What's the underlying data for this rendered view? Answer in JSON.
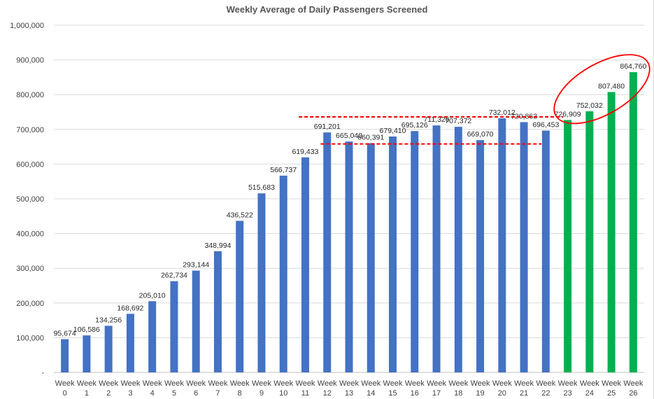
{
  "chart_data": {
    "type": "bar",
    "title": "Weekly Average of Daily Passengers Screened",
    "xlabel": "",
    "ylabel": "",
    "ylim": [
      0,
      1000000
    ],
    "yticks": [
      0,
      100000,
      200000,
      300000,
      400000,
      500000,
      600000,
      700000,
      800000,
      900000,
      1000000
    ],
    "ytick_labels": [
      "-",
      "100,000",
      "200,000",
      "300,000",
      "400,000",
      "500,000",
      "600,000",
      "700,000",
      "800,000",
      "900,000",
      "1,000,000"
    ],
    "grid": true,
    "categories": [
      "Week 0",
      "Week 1",
      "Week 2",
      "Week 3",
      "Week 4",
      "Week 5",
      "Week 6",
      "Week 7",
      "Week 8",
      "Week 9",
      "Week 10",
      "Week 11",
      "Week 12",
      "Week 13",
      "Week 14",
      "Week 15",
      "Week 16",
      "Week 17",
      "Week 18",
      "Week 19",
      "Week 20",
      "Week 21",
      "Week 22",
      "Week 23",
      "Week 24",
      "Week 25",
      "Week 26"
    ],
    "values": [
      95674,
      106586,
      134256,
      168692,
      205010,
      262734,
      293144,
      348994,
      436522,
      515683,
      566737,
      619433,
      691201,
      665040,
      660391,
      679410,
      695126,
      711326,
      707372,
      669070,
      732012,
      720863,
      696453,
      726909,
      752032,
      807480,
      864760
    ],
    "data_labels": [
      "95,674",
      "106,586",
      "134,256",
      "168,692",
      "205,010",
      "262,734",
      "293,144",
      "348,994",
      "436,522",
      "515,683",
      "566,737",
      "619,433",
      "691,201",
      "665,040",
      "660,391",
      "679,410",
      "695,126",
      "711,326",
      "707,372",
      "669,070",
      "732,012",
      "720,863",
      "696,453",
      "726,909",
      "752,032",
      "807,480",
      "864,760"
    ],
    "bar_colors": [
      "#4472c4",
      "#4472c4",
      "#4472c4",
      "#4472c4",
      "#4472c4",
      "#4472c4",
      "#4472c4",
      "#4472c4",
      "#4472c4",
      "#4472c4",
      "#4472c4",
      "#4472c4",
      "#4472c4",
      "#4472c4",
      "#4472c4",
      "#4472c4",
      "#4472c4",
      "#4472c4",
      "#4472c4",
      "#4472c4",
      "#4472c4",
      "#4472c4",
      "#4472c4",
      "#00b050",
      "#00b050",
      "#00b050",
      "#00b050"
    ],
    "annotations": {
      "reference_lines": [
        {
          "y": 736000,
          "from_category": 11,
          "to_category": 23,
          "color": "#ff0000",
          "style": "dashed"
        },
        {
          "y": 658000,
          "from_category": 12,
          "to_category": 22,
          "color": "#ff0000",
          "style": "dashed"
        }
      ],
      "highlight_ellipse": {
        "around_categories": [
          23,
          26
        ],
        "color": "#ff0000"
      }
    }
  }
}
